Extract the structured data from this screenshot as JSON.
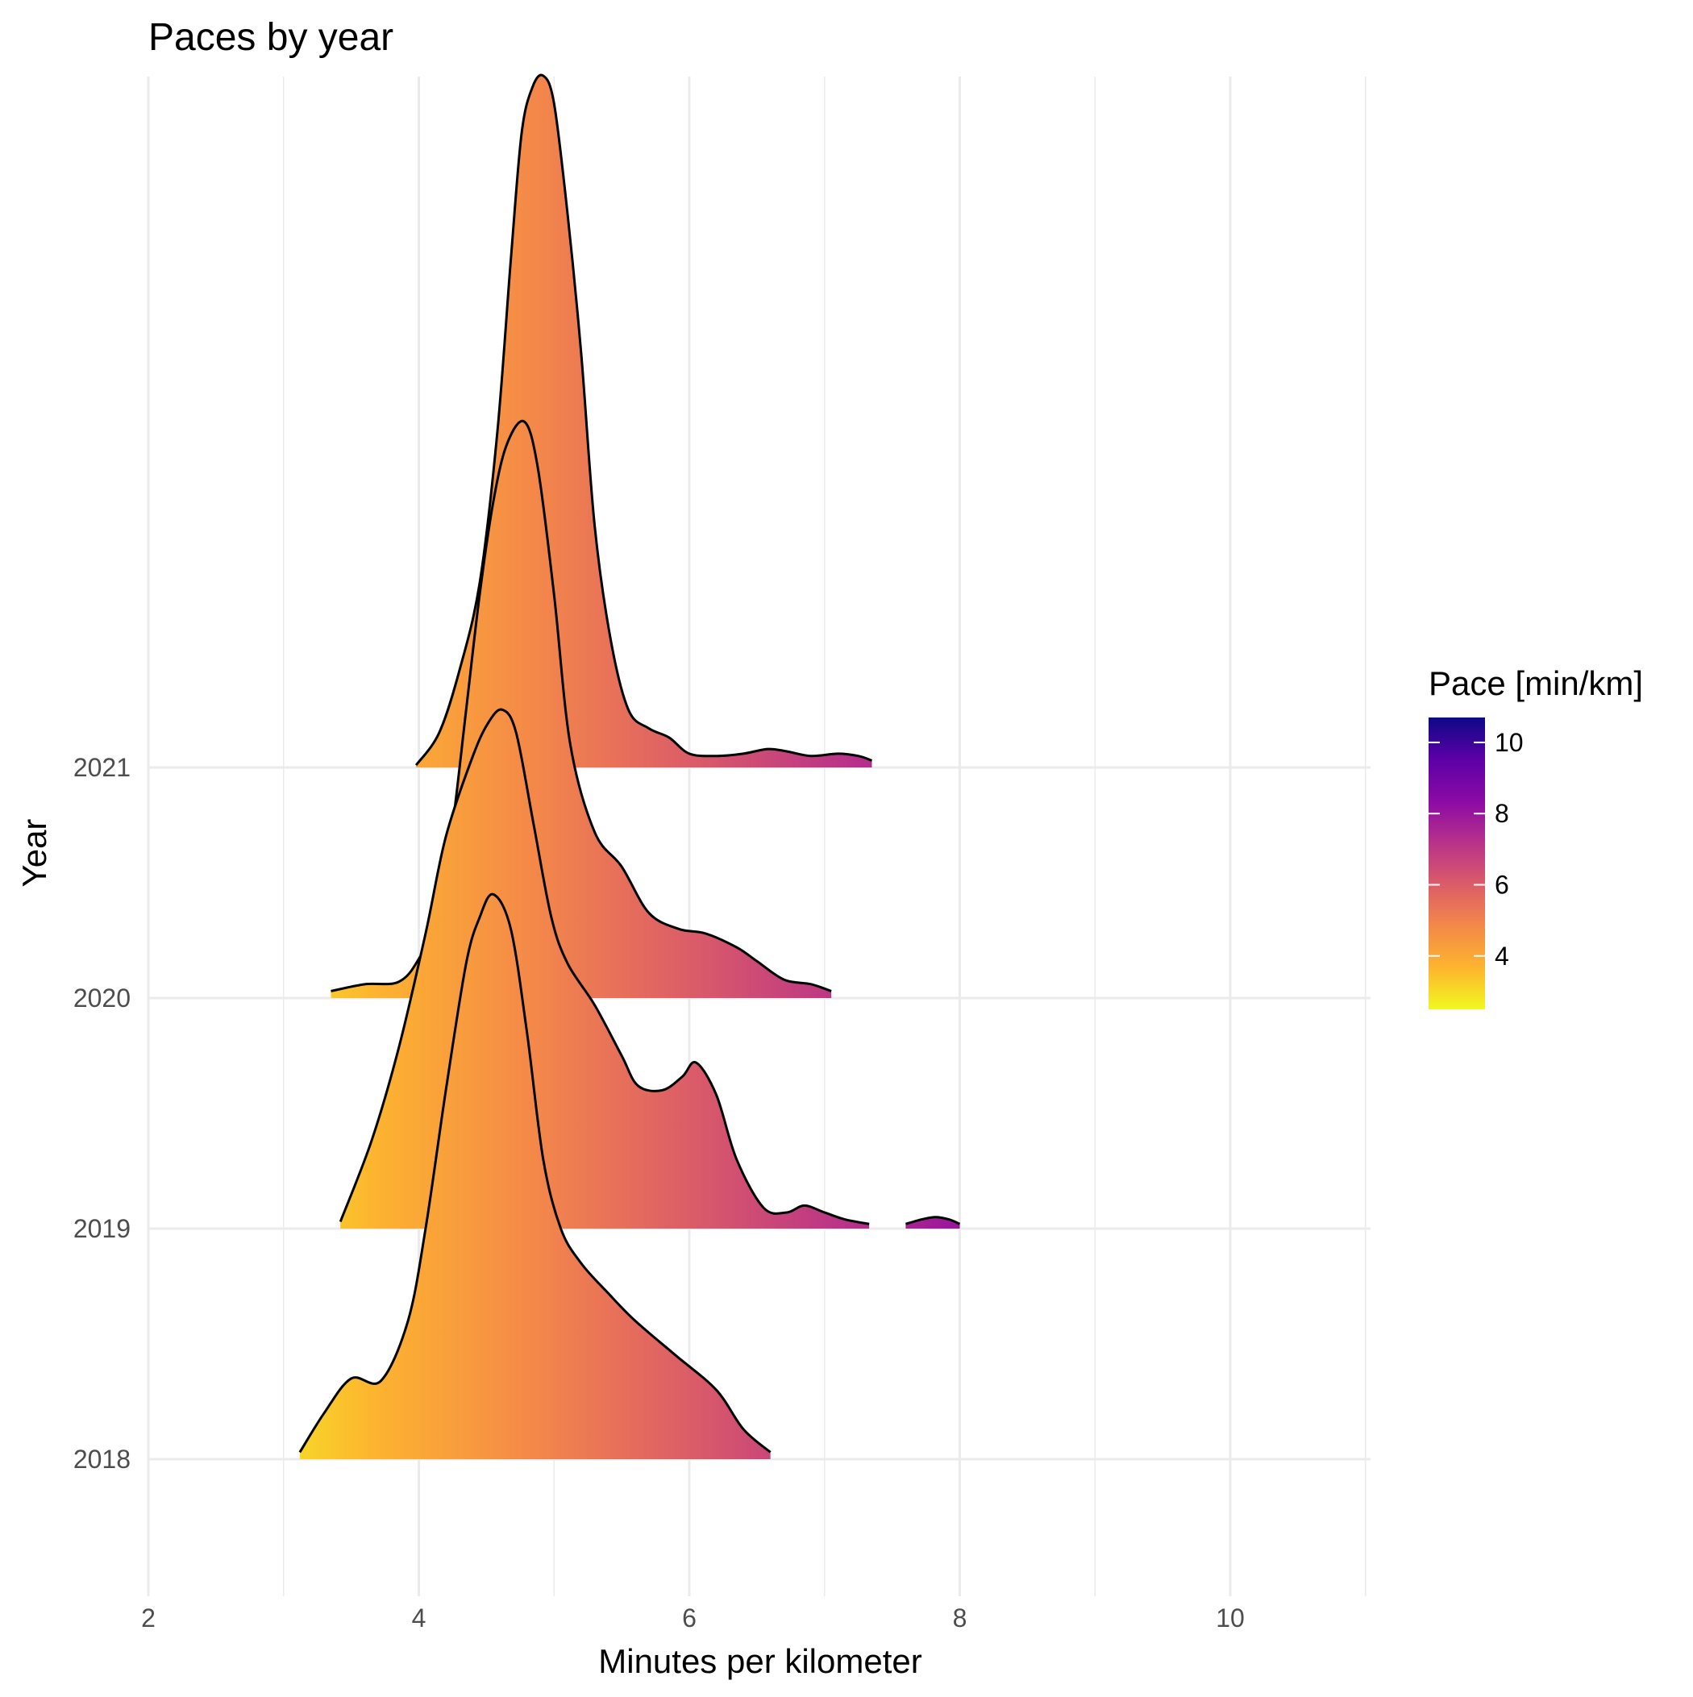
{
  "chart_data": {
    "type": "ridgeline",
    "title": "Paces by year",
    "xlabel": "Minutes per kilometer",
    "ylabel": "Year",
    "xlim": [
      1.6,
      11.3
    ],
    "xticks": [
      2,
      4,
      6,
      8,
      10
    ],
    "categories": [
      "2018",
      "2019",
      "2020",
      "2021"
    ],
    "grid": true,
    "legend": {
      "title": "Pace [min/km]",
      "position": "right",
      "range": [
        2.5,
        10.7
      ],
      "ticks": [
        4,
        6,
        8,
        10
      ],
      "colors": [
        "#f0f921",
        "#fdb42f",
        "#f48849",
        "#db5c68",
        "#b83289",
        "#8b0aa5",
        "#5c01a6",
        "#0d0887"
      ]
    },
    "series": [
      {
        "name": "2018",
        "segments": [
          [
            [
              3.12,
              0.03
            ],
            [
              3.3,
              0.2
            ],
            [
              3.5,
              0.35
            ],
            [
              3.72,
              0.34
            ],
            [
              3.92,
              0.6
            ],
            [
              4.05,
              1.0
            ],
            [
              4.2,
              1.6
            ],
            [
              4.35,
              2.15
            ],
            [
              4.45,
              2.35
            ],
            [
              4.55,
              2.45
            ],
            [
              4.68,
              2.3
            ],
            [
              4.8,
              1.85
            ],
            [
              4.92,
              1.3
            ],
            [
              5.05,
              1.0
            ],
            [
              5.2,
              0.85
            ],
            [
              5.4,
              0.72
            ],
            [
              5.6,
              0.6
            ],
            [
              5.9,
              0.45
            ],
            [
              6.2,
              0.3
            ],
            [
              6.4,
              0.13
            ],
            [
              6.6,
              0.03
            ]
          ]
        ]
      },
      {
        "name": "2019",
        "segments": [
          [
            [
              3.42,
              0.03
            ],
            [
              3.65,
              0.38
            ],
            [
              3.85,
              0.78
            ],
            [
              4.05,
              1.28
            ],
            [
              4.2,
              1.7
            ],
            [
              4.4,
              2.05
            ],
            [
              4.52,
              2.2
            ],
            [
              4.62,
              2.25
            ],
            [
              4.72,
              2.15
            ],
            [
              4.85,
              1.75
            ],
            [
              4.98,
              1.35
            ],
            [
              5.1,
              1.15
            ],
            [
              5.3,
              0.97
            ],
            [
              5.5,
              0.75
            ],
            [
              5.62,
              0.62
            ],
            [
              5.8,
              0.6
            ],
            [
              5.95,
              0.66
            ],
            [
              6.05,
              0.72
            ],
            [
              6.2,
              0.58
            ],
            [
              6.35,
              0.3
            ],
            [
              6.55,
              0.09
            ],
            [
              6.72,
              0.07
            ],
            [
              6.85,
              0.1
            ],
            [
              7.0,
              0.07
            ],
            [
              7.15,
              0.04
            ],
            [
              7.33,
              0.02
            ]
          ],
          [
            [
              7.6,
              0.02
            ],
            [
              7.72,
              0.04
            ],
            [
              7.82,
              0.05
            ],
            [
              7.92,
              0.04
            ],
            [
              8.0,
              0.02
            ]
          ]
        ]
      },
      {
        "name": "2020",
        "segments": [
          [
            [
              3.35,
              0.03
            ],
            [
              3.6,
              0.06
            ],
            [
              3.85,
              0.07
            ],
            [
              4.0,
              0.17
            ],
            [
              4.15,
              0.37
            ],
            [
              4.25,
              0.75
            ],
            [
              4.35,
              1.25
            ],
            [
              4.45,
              1.75
            ],
            [
              4.55,
              2.15
            ],
            [
              4.65,
              2.4
            ],
            [
              4.78,
              2.5
            ],
            [
              4.88,
              2.3
            ],
            [
              5.0,
              1.75
            ],
            [
              5.12,
              1.1
            ],
            [
              5.3,
              0.72
            ],
            [
              5.5,
              0.57
            ],
            [
              5.7,
              0.37
            ],
            [
              5.92,
              0.3
            ],
            [
              6.12,
              0.28
            ],
            [
              6.35,
              0.22
            ],
            [
              6.5,
              0.16
            ],
            [
              6.7,
              0.08
            ],
            [
              6.9,
              0.06
            ],
            [
              7.05,
              0.03
            ]
          ]
        ]
      },
      {
        "name": "2021",
        "segments": [
          [
            [
              3.98,
              0.01
            ],
            [
              4.15,
              0.15
            ],
            [
              4.3,
              0.42
            ],
            [
              4.45,
              0.8
            ],
            [
              4.58,
              1.45
            ],
            [
              4.68,
              2.2
            ],
            [
              4.76,
              2.75
            ],
            [
              4.84,
              2.95
            ],
            [
              4.92,
              3.0
            ],
            [
              5.0,
              2.88
            ],
            [
              5.1,
              2.4
            ],
            [
              5.2,
              1.8
            ],
            [
              5.3,
              1.05
            ],
            [
              5.42,
              0.55
            ],
            [
              5.55,
              0.25
            ],
            [
              5.7,
              0.17
            ],
            [
              5.85,
              0.13
            ],
            [
              6.0,
              0.06
            ],
            [
              6.2,
              0.05
            ],
            [
              6.4,
              0.06
            ],
            [
              6.58,
              0.08
            ],
            [
              6.72,
              0.07
            ],
            [
              6.9,
              0.05
            ],
            [
              7.1,
              0.06
            ],
            [
              7.25,
              0.05
            ],
            [
              7.35,
              0.03
            ]
          ]
        ]
      }
    ]
  }
}
